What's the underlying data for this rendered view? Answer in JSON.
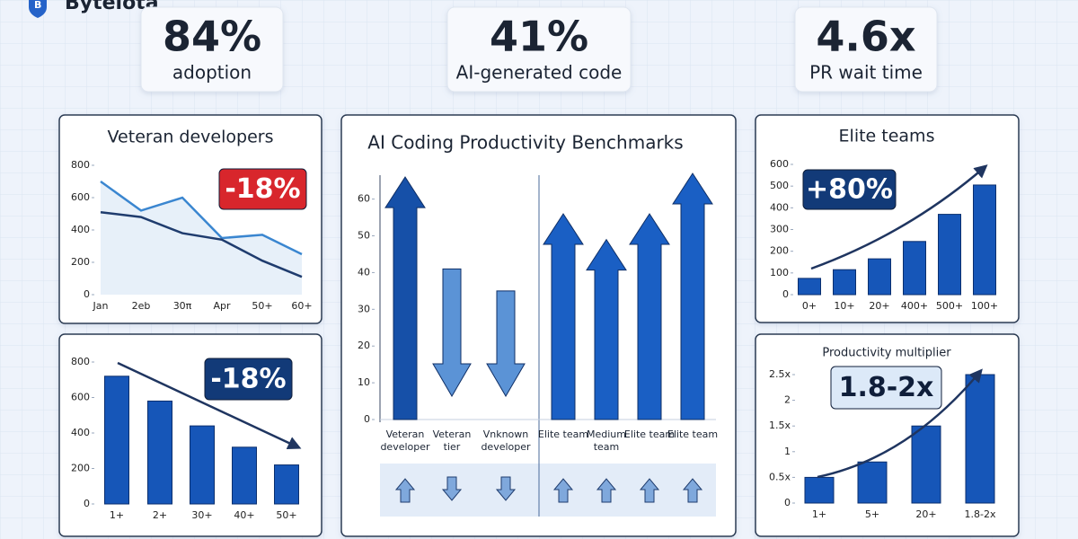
{
  "header": {
    "logo": "Bytelota"
  },
  "stats": [
    {
      "value": "84%",
      "label": "adoption"
    },
    {
      "value": "41%",
      "label": "AI-generated code"
    },
    {
      "value": "4.6x",
      "label": "PR wait time"
    }
  ],
  "chart_data": [
    {
      "type": "line",
      "title": "Veteran developers",
      "annotation": "-18%",
      "categories": [
        "Jan",
        "2eb",
        "30π",
        "Apr",
        "50+",
        "60+"
      ],
      "series": [
        {
          "color": "#3a86d0",
          "values": [
            700,
            520,
            600,
            350,
            370,
            250
          ]
        },
        {
          "color": "#1f3c6e",
          "values": [
            510,
            480,
            380,
            340,
            210,
            110
          ]
        }
      ],
      "ylim": [
        0,
        800
      ],
      "yticks": [
        0,
        200,
        400,
        600,
        800
      ]
    },
    {
      "type": "bar",
      "annotation": "-18%",
      "categories": [
        "1+",
        "2+",
        "30+",
        "40+",
        "50+"
      ],
      "values": [
        720,
        580,
        440,
        320,
        220
      ],
      "color": "#1656b8",
      "ylim": [
        0,
        800
      ],
      "yticks": [
        0,
        200,
        400,
        600,
        800
      ]
    },
    {
      "type": "arrow",
      "title": "AI Coding Productivity Benchmarks",
      "categories": [
        "Veteran developer",
        "Veteran tier",
        "Vnknown developer",
        "Elite team",
        "Medium team",
        "Elite team",
        "Elite team"
      ],
      "values": [
        66,
        41,
        35,
        56,
        49,
        56,
        67
      ],
      "directions": [
        "up",
        "down",
        "down",
        "up",
        "up",
        "up",
        "up"
      ],
      "colors": [
        "#1650a8",
        "#5b93d6",
        "#5b93d6",
        "#1a5fc4",
        "#1a5fc4",
        "#1a5fc4",
        "#1a5fc4"
      ],
      "ylim": [
        0,
        67
      ],
      "yticks": [
        0,
        10,
        20,
        30,
        40,
        50,
        60
      ]
    },
    {
      "type": "bar",
      "title": "Elite teams",
      "annotation": "+80%",
      "categories": [
        "0+",
        "10+",
        "20+",
        "400+",
        "500+",
        "100+"
      ],
      "values": [
        75,
        115,
        165,
        245,
        370,
        505
      ],
      "color": "#1656b8",
      "ylim": [
        0,
        600
      ],
      "yticks": [
        0,
        100,
        200,
        300,
        400,
        500,
        600
      ]
    },
    {
      "type": "bar",
      "title": "Productivity multiplier",
      "annotation": "1.8-2x",
      "categories": [
        "1+",
        "5+",
        "20+",
        "1.8-2x"
      ],
      "values": [
        0.5,
        0.8,
        1.5,
        2.5
      ],
      "color": "#1656b8",
      "ylim": [
        0,
        2.5
      ],
      "yticks": [
        0,
        {
          "value": 0.5,
          "label": "0.5x"
        },
        1,
        {
          "value": 1.5,
          "label": "1.5x"
        },
        2,
        {
          "value": 2.5,
          "label": "2.5x"
        }
      ]
    }
  ]
}
